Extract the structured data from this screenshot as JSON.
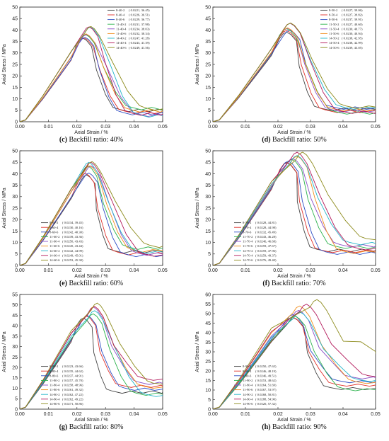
{
  "chart_data": [
    {
      "type": "line",
      "caption_letter": "(c)",
      "caption_text": "Backfill ratio: 40%",
      "xlabel": "Axial Strain / %",
      "ylabel": "Axial Stress / MPa",
      "xlim": [
        0,
        0.05
      ],
      "ylim": [
        0,
        50
      ],
      "xticks": [
        "0.00",
        "0.01",
        "0.02",
        "0.03",
        "0.04",
        "0.05"
      ],
      "yticks": [
        "0",
        "5",
        "10",
        "15",
        "20",
        "25",
        "30",
        "35",
        "40",
        "45",
        "50"
      ],
      "legend_position": "top-right",
      "series": [
        {
          "name": "8-40-2",
          "peak_strain": "0.0221",
          "peak_stress": "36.45",
          "x": 0.0221,
          "y": 36.45,
          "color": "#444444"
        },
        {
          "name": "8-40-4",
          "peak_strain": "0.0226",
          "peak_stress": "36.51",
          "x": 0.0226,
          "y": 36.51,
          "color": "#e0312a"
        },
        {
          "name": "8-40-6",
          "peak_strain": "0.0229",
          "peak_stress": "36.77",
          "x": 0.0229,
          "y": 36.77,
          "color": "#2f4ec4"
        },
        {
          "name": "11-40-2",
          "peak_strain": "0.0231",
          "peak_stress": "37.98",
          "x": 0.0231,
          "y": 37.98,
          "color": "#2bb24c"
        },
        {
          "name": "11-40-4",
          "peak_strain": "0.0234",
          "peak_stress": "38.03",
          "x": 0.0234,
          "y": 38.03,
          "color": "#8a4fc7"
        },
        {
          "name": "11-40-6",
          "peak_strain": "0.0232",
          "peak_stress": "38.34",
          "x": 0.0232,
          "y": 38.34,
          "color": "#f08c1a"
        },
        {
          "name": "14-40-2",
          "peak_strain": "0.0247",
          "peak_stress": "41.28",
          "x": 0.0247,
          "y": 41.28,
          "color": "#22b5c9"
        },
        {
          "name": "14-40-4",
          "peak_strain": "0.0243",
          "peak_stress": "41.39",
          "x": 0.0243,
          "y": 41.39,
          "color": "#b2185a"
        },
        {
          "name": "14-40-6",
          "peak_strain": "0.0249",
          "peak_stress": "41.56",
          "x": 0.0249,
          "y": 41.56,
          "color": "#8c8a1a"
        }
      ]
    },
    {
      "type": "line",
      "caption_letter": "(d)",
      "caption_text": "Backfill ratio: 50%",
      "xlabel": "Axial Strain / %",
      "ylabel": "Axial Stress / MPa",
      "xlim": [
        0,
        0.05
      ],
      "ylim": [
        0,
        50
      ],
      "xticks": [
        "0.00",
        "0.01",
        "0.02",
        "0.03",
        "0.04",
        "0.05"
      ],
      "yticks": [
        "0",
        "5",
        "10",
        "15",
        "20",
        "25",
        "30",
        "35",
        "40",
        "45",
        "50"
      ],
      "legend_position": "top-right",
      "series": [
        {
          "name": "8-50-2",
          "peak_strain": "0.0227",
          "peak_stress": "39.06",
          "x": 0.0227,
          "y": 39.06,
          "color": "#444444"
        },
        {
          "name": "8-50-4",
          "peak_strain": "0.0227",
          "peak_stress": "39.82",
          "x": 0.0227,
          "y": 39.82,
          "color": "#e0312a"
        },
        {
          "name": "8-50-6",
          "peak_strain": "0.0237",
          "peak_stress": "39.91",
          "x": 0.0237,
          "y": 39.91,
          "color": "#2f4ec4"
        },
        {
          "name": "11-50-2",
          "peak_strain": "0.0227",
          "peak_stress": "40.60",
          "x": 0.0227,
          "y": 40.6,
          "color": "#2bb24c"
        },
        {
          "name": "11-50-4",
          "peak_strain": "0.0230",
          "peak_stress": "40.77",
          "x": 0.023,
          "y": 40.77,
          "color": "#8a4fc7"
        },
        {
          "name": "11-50-6",
          "peak_strain": "0.0230",
          "peak_stress": "40.94",
          "x": 0.023,
          "y": 40.94,
          "color": "#f08c1a"
        },
        {
          "name": "14-50-2",
          "peak_strain": "0.0238",
          "peak_stress": "42.95",
          "x": 0.0238,
          "y": 42.95,
          "color": "#22b5c9"
        },
        {
          "name": "14-50-4",
          "peak_strain": "0.0238",
          "peak_stress": "42.99",
          "x": 0.0238,
          "y": 42.99,
          "color": "#b2185a"
        },
        {
          "name": "14-50-6",
          "peak_strain": "0.0239",
          "peak_stress": "43.05",
          "x": 0.0239,
          "y": 43.05,
          "color": "#8c8a1a"
        }
      ]
    },
    {
      "type": "line",
      "caption_letter": "(e)",
      "caption_text": "Backfill ratio: 60%",
      "xlabel": "Axial Strain / %",
      "ylabel": "Axial Stress / MPa",
      "xlim": [
        0,
        0.05
      ],
      "ylim": [
        0,
        50
      ],
      "xticks": [
        "0.00",
        "0.01",
        "0.02",
        "0.03",
        "0.04",
        "0.05"
      ],
      "yticks": [
        "0",
        "5",
        "10",
        "15",
        "20",
        "25",
        "30",
        "35",
        "40",
        "45",
        "50"
      ],
      "legend_position": "bottom-left",
      "series": [
        {
          "name": "8-60-2",
          "peak_strain": "0.0234",
          "peak_stress": "39.45",
          "x": 0.0234,
          "y": 39.45,
          "color": "#444444"
        },
        {
          "name": "8-60-4",
          "peak_strain": "0.0230",
          "peak_stress": "40.16",
          "x": 0.023,
          "y": 40.16,
          "color": "#e0312a"
        },
        {
          "name": "8-60-6",
          "peak_strain": "0.0242",
          "peak_stress": "40.30",
          "x": 0.0242,
          "y": 40.3,
          "color": "#2f4ec4"
        },
        {
          "name": "11-60-2",
          "peak_strain": "0.0239",
          "peak_stress": "43.36",
          "x": 0.0239,
          "y": 43.36,
          "color": "#2bb24c"
        },
        {
          "name": "11-60-4",
          "peak_strain": "0.0250",
          "peak_stress": "43.43",
          "x": 0.025,
          "y": 43.43,
          "color": "#8a4fc7"
        },
        {
          "name": "11-60-6",
          "peak_strain": "0.0245",
          "peak_stress": "43.44",
          "x": 0.0245,
          "y": 43.44,
          "color": "#f08c1a"
        },
        {
          "name": "14-60-2",
          "peak_strain": "0.0242",
          "peak_stress": "44.99",
          "x": 0.0242,
          "y": 44.99,
          "color": "#22b5c9"
        },
        {
          "name": "14-60-4",
          "peak_strain": "0.0249",
          "peak_stress": "45.01",
          "x": 0.0249,
          "y": 45.01,
          "color": "#b2185a"
        },
        {
          "name": "14-60-6",
          "peak_strain": "0.0253",
          "peak_stress": "45.30",
          "x": 0.0253,
          "y": 45.3,
          "color": "#8c8a1a"
        }
      ]
    },
    {
      "type": "line",
      "caption_letter": "(f)",
      "caption_text": "Backfill ratio: 70%",
      "xlabel": "Axial Strain / %",
      "ylabel": "Axial Stress / MPa",
      "xlim": [
        0,
        0.05
      ],
      "ylim": [
        0,
        50
      ],
      "xticks": [
        "0.00",
        "0.01",
        "0.02",
        "0.03",
        "0.04",
        "0.05"
      ],
      "yticks": [
        "0",
        "5",
        "10",
        "15",
        "20",
        "25",
        "30",
        "35",
        "40",
        "45",
        "50"
      ],
      "legend_position": "bottom-left",
      "series": [
        {
          "name": "8-70-2",
          "peak_strain": "0.0228",
          "peak_stress": "44.81",
          "x": 0.0228,
          "y": 44.81,
          "color": "#444444"
        },
        {
          "name": "8-70-4",
          "peak_strain": "0.0228",
          "peak_stress": "44.98",
          "x": 0.0228,
          "y": 44.98,
          "color": "#e0312a"
        },
        {
          "name": "8-70-6",
          "peak_strain": "0.0232",
          "peak_stress": "45.49",
          "x": 0.0232,
          "y": 45.49,
          "color": "#2f4ec4"
        },
        {
          "name": "11-70-2",
          "peak_strain": "0.0243",
          "peak_stress": "46.28",
          "x": 0.0243,
          "y": 46.28,
          "color": "#2bb24c"
        },
        {
          "name": "11-70-4",
          "peak_strain": "0.0246",
          "peak_stress": "46.68",
          "x": 0.0246,
          "y": 46.68,
          "color": "#8a4fc7"
        },
        {
          "name": "11-70-6",
          "peak_strain": "0.0259",
          "peak_stress": "47.67",
          "x": 0.0259,
          "y": 47.67,
          "color": "#f08c1a"
        },
        {
          "name": "14-70-2",
          "peak_strain": "0.0259",
          "peak_stress": "47.96",
          "x": 0.0259,
          "y": 47.96,
          "color": "#22b5c9"
        },
        {
          "name": "14-70-4",
          "peak_strain": "0.0259",
          "peak_stress": "49.37",
          "x": 0.0259,
          "y": 49.37,
          "color": "#b2185a"
        },
        {
          "name": "14-70-6",
          "peak_strain": "0.0276",
          "peak_stress": "49.40",
          "x": 0.0276,
          "y": 49.4,
          "color": "#8c8a1a"
        }
      ]
    },
    {
      "type": "line",
      "caption_letter": "(g)",
      "caption_text": "Backfill ratio: 80%",
      "xlabel": "Axial Strain / %",
      "ylabel": "Axial Stress / MPa",
      "xlim": [
        0,
        0.05
      ],
      "ylim": [
        0,
        55
      ],
      "xticks": [
        "0.00",
        "0.01",
        "0.02",
        "0.03",
        "0.04",
        "0.05"
      ],
      "yticks": [
        "0",
        "5",
        "10",
        "15",
        "20",
        "25",
        "30",
        "35",
        "40",
        "45",
        "50",
        "55"
      ],
      "legend_position": "bottom-left",
      "series": [
        {
          "name": "8-80-2",
          "peak_strain": "0.0223",
          "peak_stress": "43.66",
          "x": 0.0223,
          "y": 43.66,
          "color": "#444444"
        },
        {
          "name": "8-80-4",
          "peak_strain": "0.0235",
          "peak_stress": "44.62",
          "x": 0.0235,
          "y": 44.62,
          "color": "#e0312a"
        },
        {
          "name": "8-80-6",
          "peak_strain": "0.0237",
          "peak_stress": "44.91",
          "x": 0.0237,
          "y": 44.91,
          "color": "#2f4ec4"
        },
        {
          "name": "11-80-2",
          "peak_strain": "0.0257",
          "peak_stress": "45.70",
          "x": 0.0257,
          "y": 45.7,
          "color": "#2bb24c"
        },
        {
          "name": "11-80-4",
          "peak_strain": "0.0258",
          "peak_stress": "48.96",
          "x": 0.0258,
          "y": 48.96,
          "color": "#8a4fc7"
        },
        {
          "name": "11-80-6",
          "peak_strain": "0.0261",
          "peak_stress": "49.32",
          "x": 0.0261,
          "y": 49.32,
          "color": "#f08c1a"
        },
        {
          "name": "14-80-2",
          "peak_strain": "0.0262",
          "peak_stress": "47.22",
          "x": 0.0262,
          "y": 47.22,
          "color": "#22b5c9"
        },
        {
          "name": "14-80-4",
          "peak_strain": "0.0262",
          "peak_stress": "49.22",
          "x": 0.0262,
          "y": 49.22,
          "color": "#b2185a"
        },
        {
          "name": "14-80-6",
          "peak_strain": "0.0271",
          "peak_stress": "50.86",
          "x": 0.0271,
          "y": 50.86,
          "color": "#8c8a1a"
        }
      ]
    },
    {
      "type": "line",
      "caption_letter": "(h)",
      "caption_text": "Backfill ratio: 90%",
      "xlabel": "Axial Strain / %",
      "ylabel": "Axial Stress / MPa",
      "xlim": [
        0,
        0.05
      ],
      "ylim": [
        0,
        60
      ],
      "xticks": [
        "0.00",
        "0.01",
        "0.02",
        "0.03",
        "0.04",
        "0.05"
      ],
      "yticks": [
        "0",
        "5",
        "10",
        "15",
        "20",
        "25",
        "30",
        "35",
        "40",
        "45",
        "50",
        "55",
        "60"
      ],
      "legend_position": "bottom-left",
      "series": [
        {
          "name": "8-90-2",
          "peak_strain": "0.0250",
          "peak_stress": "47.65",
          "x": 0.025,
          "y": 47.65,
          "color": "#444444"
        },
        {
          "name": "8-90-4",
          "peak_strain": "0.0246",
          "peak_stress": "48.19",
          "x": 0.0246,
          "y": 48.19,
          "color": "#e0312a"
        },
        {
          "name": "8-90-6",
          "peak_strain": "0.0246",
          "peak_stress": "49.51",
          "x": 0.0246,
          "y": 49.51,
          "color": "#2f4ec4"
        },
        {
          "name": "11-90-2",
          "peak_strain": "0.0253",
          "peak_stress": "48.62",
          "x": 0.0253,
          "y": 48.62,
          "color": "#2bb24c"
        },
        {
          "name": "11-90-4",
          "peak_strain": "0.0264",
          "peak_stress": "51.69",
          "x": 0.0264,
          "y": 51.69,
          "color": "#8a4fc7"
        },
        {
          "name": "11-90-6",
          "peak_strain": "0.0267",
          "peak_stress": "53.97",
          "x": 0.0267,
          "y": 53.97,
          "color": "#f08c1a"
        },
        {
          "name": "14-90-2",
          "peak_strain": "0.0268",
          "peak_stress": "50.81",
          "x": 0.0268,
          "y": 50.81,
          "color": "#22b5c9"
        },
        {
          "name": "14-90-4",
          "peak_strain": "0.0288",
          "peak_stress": "54.90",
          "x": 0.0288,
          "y": 54.9,
          "color": "#b2185a"
        },
        {
          "name": "14-90-6",
          "peak_strain": "0.0320",
          "peak_stress": "57.32",
          "x": 0.032,
          "y": 57.32,
          "color": "#8c8a1a"
        }
      ]
    }
  ]
}
